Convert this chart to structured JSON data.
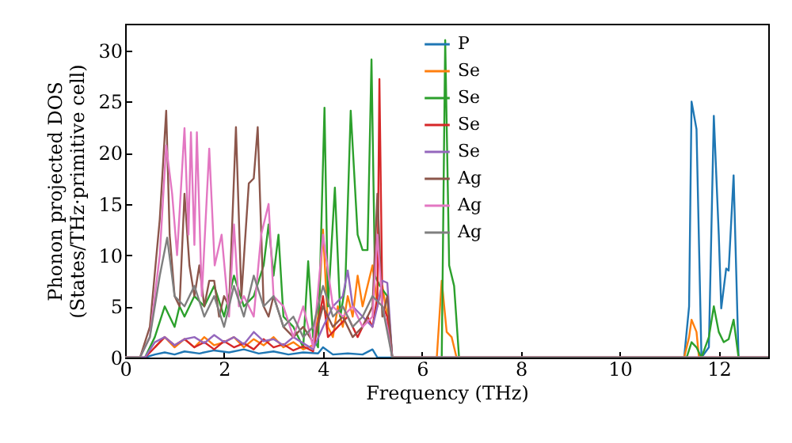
{
  "chart_data": {
    "type": "line",
    "xlabel": "Frequency (THz)",
    "ylabel": "Phonon projected DOS\n(States/THz·primitive cell)",
    "xlim": [
      0,
      13
    ],
    "ylim": [
      0,
      32.6
    ],
    "xticks": [
      0,
      2,
      4,
      6,
      8,
      10,
      12
    ],
    "yticks": [
      0,
      5,
      10,
      15,
      20,
      25,
      30
    ],
    "grid": false,
    "legend": "top",
    "marker": "none",
    "line_style": "solid",
    "series": [
      {
        "name": "P",
        "color": "#1f77b4",
        "x": [
          0,
          0.4,
          0.6,
          0.8,
          1.0,
          1.2,
          1.5,
          1.8,
          2.1,
          2.4,
          2.7,
          3.0,
          3.3,
          3.6,
          3.9,
          4.0,
          4.2,
          4.5,
          4.8,
          5.0,
          5.1,
          5.3,
          11.3,
          11.4,
          11.45,
          11.55,
          11.65,
          11.8,
          11.9,
          12.0,
          12.05,
          12.15,
          12.2,
          12.3,
          12.4,
          13
        ],
        "values": [
          0,
          0,
          0.3,
          0.5,
          0.3,
          0.6,
          0.4,
          0.7,
          0.5,
          0.8,
          0.4,
          0.6,
          0.3,
          0.5,
          0.4,
          1.0,
          0.3,
          0.4,
          0.3,
          0.8,
          0,
          0,
          0,
          5,
          25,
          22.3,
          0,
          1,
          23.6,
          12,
          4.8,
          8.7,
          8.5,
          17.8,
          0,
          0
        ]
      },
      {
        "name": "Se",
        "color": "#ff7f0e",
        "x": [
          0.6,
          0.8,
          0.9,
          1.0,
          1.2,
          1.4,
          1.6,
          1.8,
          2.0,
          2.2,
          2.4,
          2.6,
          2.8,
          3.0,
          3.2,
          3.4,
          3.6,
          3.8,
          3.9,
          4.0,
          4.1,
          4.2,
          4.3,
          4.4,
          4.5,
          4.6,
          4.7,
          4.8,
          4.9,
          5.0,
          5.1,
          5.2,
          5.3,
          5.4,
          6.3,
          6.4,
          6.5,
          6.6,
          6.7,
          11.3,
          11.4,
          11.45,
          11.55,
          11.6,
          13
        ],
        "values": [
          1,
          2,
          1.5,
          1,
          1.8,
          1,
          2,
          1.2,
          1.5,
          2,
          1,
          1.8,
          1.2,
          2,
          1,
          1.5,
          0.8,
          1.2,
          4,
          12.5,
          3,
          2,
          5,
          3,
          6,
          4,
          8,
          5,
          7,
          9,
          5,
          7,
          4,
          0,
          0,
          7.5,
          2.5,
          2,
          0,
          0,
          2,
          3.7,
          2.5,
          0,
          0
        ]
      },
      {
        "name": "Se",
        "color": "#2ca02c",
        "x": [
          0,
          0.4,
          0.6,
          0.8,
          0.9,
          1.0,
          1.1,
          1.2,
          1.4,
          1.6,
          1.8,
          2.0,
          2.2,
          2.4,
          2.6,
          2.8,
          2.9,
          3.0,
          3.1,
          3.2,
          3.4,
          3.6,
          3.7,
          3.8,
          3.9,
          4.03,
          4.1,
          4.24,
          4.35,
          4.45,
          4.56,
          4.7,
          4.8,
          4.9,
          4.98,
          5.05,
          5.15,
          5.3,
          5.4,
          6.4,
          6.47,
          6.55,
          6.65,
          6.75,
          11.35,
          11.45,
          11.55,
          11.65,
          11.8,
          11.9,
          12.0,
          12.1,
          12.2,
          12.3,
          12.4,
          13
        ],
        "values": [
          0,
          0,
          2,
          5,
          4,
          3,
          5,
          4,
          6,
          5,
          7,
          4,
          8,
          5,
          6,
          9,
          13,
          8,
          12,
          4,
          3,
          1,
          9.4,
          2,
          1,
          24.4,
          5,
          16.6,
          4,
          7,
          24.1,
          12,
          10.5,
          10.5,
          29.1,
          8,
          7,
          6,
          0,
          0,
          31,
          9,
          7,
          0,
          0,
          1.5,
          1,
          0,
          2,
          5,
          2.5,
          1.5,
          1.8,
          3.7,
          0,
          0
        ]
      },
      {
        "name": "Se",
        "color": "#d62728",
        "x": [
          0,
          0.4,
          0.6,
          0.8,
          1.0,
          1.2,
          1.4,
          1.6,
          1.8,
          2.0,
          2.2,
          2.4,
          2.6,
          2.8,
          3.0,
          3.2,
          3.4,
          3.6,
          3.8,
          4.0,
          4.1,
          4.3,
          4.5,
          4.7,
          4.9,
          5.0,
          5.1,
          5.14,
          5.2,
          5.3,
          5.4,
          13
        ],
        "values": [
          0,
          0,
          1,
          2,
          1.2,
          1.8,
          1,
          1.5,
          0.8,
          1.6,
          1,
          1.4,
          0.8,
          1.8,
          1,
          1.3,
          0.7,
          1.1,
          0.6,
          6,
          2,
          3,
          4,
          2,
          4,
          3,
          6,
          27.2,
          5,
          4,
          0,
          0
        ]
      },
      {
        "name": "Se",
        "color": "#9467bd",
        "x": [
          0,
          0.4,
          0.6,
          0.8,
          1.0,
          1.2,
          1.4,
          1.6,
          1.8,
          2.0,
          2.2,
          2.4,
          2.6,
          2.8,
          3.0,
          3.2,
          3.4,
          3.6,
          3.8,
          4.0,
          4.2,
          4.4,
          4.5,
          4.6,
          4.8,
          5.0,
          5.1,
          5.2,
          5.3,
          5.4,
          13
        ],
        "values": [
          0,
          0,
          1.5,
          2,
          1.2,
          1.8,
          2,
          1.4,
          2.2,
          1.5,
          2,
          1.3,
          2.5,
          1.6,
          1.8,
          1.2,
          2,
          1.4,
          0.8,
          3,
          5,
          6,
          8.5,
          5,
          4,
          3,
          5,
          7.5,
          7.3,
          0,
          0
        ]
      },
      {
        "name": "Ag",
        "color": "#8c564b",
        "x": [
          0,
          0.3,
          0.5,
          0.7,
          0.83,
          0.9,
          1.0,
          1.1,
          1.2,
          1.3,
          1.4,
          1.5,
          1.6,
          1.7,
          1.8,
          1.9,
          2.0,
          2.1,
          2.24,
          2.35,
          2.5,
          2.6,
          2.68,
          2.8,
          2.9,
          3.0,
          3.2,
          3.4,
          3.6,
          3.8,
          4.0,
          4.2,
          4.4,
          4.6,
          4.8,
          5.0,
          5.1,
          5.2,
          5.3,
          5.4,
          13
        ],
        "values": [
          0,
          0,
          3,
          13.5,
          24.1,
          12,
          6,
          5,
          16,
          9,
          6,
          9,
          5,
          7.5,
          7.5,
          4,
          6,
          5,
          22.5,
          6,
          17,
          17.5,
          22.5,
          5,
          4,
          6,
          3,
          2,
          3,
          1.5,
          5,
          3,
          4,
          2,
          3,
          5,
          16,
          4,
          6,
          0,
          0
        ]
      },
      {
        "name": "Ag",
        "color": "#e377c2",
        "x": [
          0,
          0.3,
          0.5,
          0.7,
          0.83,
          0.95,
          1.05,
          1.2,
          1.28,
          1.33,
          1.4,
          1.45,
          1.55,
          1.7,
          1.81,
          1.95,
          2.1,
          2.2,
          2.3,
          2.4,
          2.6,
          2.75,
          2.9,
          3.0,
          3.2,
          3.4,
          3.6,
          3.8,
          4.0,
          4.2,
          4.4,
          4.6,
          4.8,
          5.0,
          5.1,
          5.2,
          5.3,
          5.4,
          13
        ],
        "values": [
          0,
          0,
          2,
          10,
          20.7,
          16,
          10,
          22.4,
          12,
          22,
          11,
          22,
          6,
          20.4,
          9,
          12,
          4,
          13,
          5,
          6,
          4,
          12,
          15,
          6,
          5,
          2,
          5,
          1,
          12,
          5,
          4,
          5,
          3,
          4,
          12,
          5,
          3,
          0,
          0
        ]
      },
      {
        "name": "Ag",
        "color": "#7f7f7f",
        "x": [
          0,
          0.3,
          0.5,
          0.7,
          0.85,
          1.0,
          1.2,
          1.4,
          1.6,
          1.8,
          2.0,
          2.2,
          2.4,
          2.6,
          2.8,
          3.0,
          3.2,
          3.4,
          3.6,
          3.8,
          4.0,
          4.2,
          4.4,
          4.6,
          4.8,
          5.0,
          5.2,
          5.4,
          13
        ],
        "values": [
          0,
          0,
          2,
          8,
          11.7,
          6,
          5,
          7,
          4,
          6,
          3,
          7,
          4,
          8,
          5,
          6,
          3,
          4,
          2,
          3,
          7,
          4,
          5,
          3,
          4,
          6,
          5,
          0,
          0
        ]
      }
    ]
  }
}
